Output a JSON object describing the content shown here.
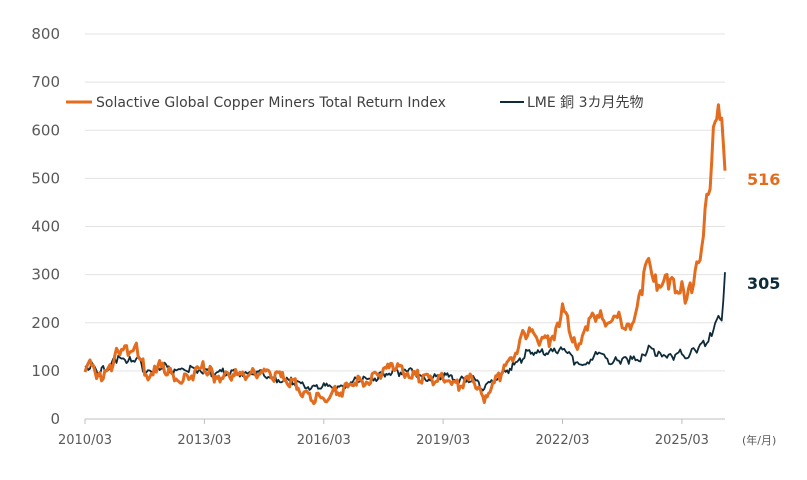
{
  "chart_data": {
    "type": "line",
    "x_unit_label": "(年/月)",
    "x_ticks": [
      "2010/03",
      "2013/03",
      "2016/03",
      "2019/03",
      "2022/03",
      "2025/03"
    ],
    "y_ticks": [
      "0",
      "100",
      "200",
      "300",
      "400",
      "500",
      "600",
      "700",
      "800"
    ],
    "ylim": [
      0,
      800
    ],
    "xlim": [
      "2010/03",
      "2026/04"
    ],
    "grid": "horizontal",
    "legend_position": "top-left",
    "series": [
      {
        "name": "Solactive Global Copper Miners Total Return Index",
        "color": "#E36C1E",
        "end_label": "516",
        "points": [
          [
            "2010/03",
            100
          ],
          [
            "2010/05",
            120
          ],
          [
            "2010/07",
            88
          ],
          [
            "2010/09",
            95
          ],
          [
            "2010/11",
            110
          ],
          [
            "2011/01",
            145
          ],
          [
            "2011/03",
            150
          ],
          [
            "2011/05",
            140
          ],
          [
            "2011/07",
            145
          ],
          [
            "2011/09",
            100
          ],
          [
            "2011/11",
            85
          ],
          [
            "2012/01",
            110
          ],
          [
            "2012/03",
            105
          ],
          [
            "2012/06",
            88
          ],
          [
            "2012/09",
            85
          ],
          [
            "2012/12",
            95
          ],
          [
            "2013/03",
            110
          ],
          [
            "2013/06",
            88
          ],
          [
            "2013/09",
            92
          ],
          [
            "2013/12",
            92
          ],
          [
            "2014/03",
            90
          ],
          [
            "2014/06",
            95
          ],
          [
            "2014/09",
            100
          ],
          [
            "2014/12",
            90
          ],
          [
            "2015/03",
            85
          ],
          [
            "2015/06",
            75
          ],
          [
            "2015/09",
            55
          ],
          [
            "2015/12",
            40
          ],
          [
            "2016/03",
            45
          ],
          [
            "2016/06",
            55
          ],
          [
            "2016/09",
            60
          ],
          [
            "2016/12",
            75
          ],
          [
            "2017/03",
            80
          ],
          [
            "2017/06",
            85
          ],
          [
            "2017/09",
            100
          ],
          [
            "2017/12",
            110
          ],
          [
            "2018/03",
            100
          ],
          [
            "2018/06",
            95
          ],
          [
            "2018/09",
            80
          ],
          [
            "2018/12",
            80
          ],
          [
            "2019/03",
            90
          ],
          [
            "2019/06",
            75
          ],
          [
            "2019/09",
            70
          ],
          [
            "2019/12",
            85
          ],
          [
            "2020/03",
            40
          ],
          [
            "2020/06",
            70
          ],
          [
            "2020/09",
            100
          ],
          [
            "2020/12",
            130
          ],
          [
            "2021/03",
            170
          ],
          [
            "2021/05",
            185
          ],
          [
            "2021/08",
            165
          ],
          [
            "2021/11",
            165
          ],
          [
            "2022/01",
            185
          ],
          [
            "2022/03",
            230
          ],
          [
            "2022/05",
            195
          ],
          [
            "2022/07",
            155
          ],
          [
            "2022/09",
            165
          ],
          [
            "2022/11",
            195
          ],
          [
            "2023/01",
            220
          ],
          [
            "2023/03",
            215
          ],
          [
            "2023/05",
            195
          ],
          [
            "2023/07",
            210
          ],
          [
            "2023/09",
            205
          ],
          [
            "2023/11",
            200
          ],
          [
            "2024/01",
            205
          ],
          [
            "2024/03",
            270
          ],
          [
            "2024/05",
            340
          ],
          [
            "2024/07",
            290
          ],
          [
            "2024/09",
            275
          ],
          [
            "2024/11",
            285
          ],
          [
            "2025/01",
            270
          ],
          [
            "2025/03",
            275
          ],
          [
            "2025/04",
            240
          ],
          [
            "2025/06",
            280
          ],
          [
            "2025/08",
            330
          ],
          [
            "2025/10",
            420
          ],
          [
            "2025/12",
            520
          ],
          [
            "2026/01",
            640
          ],
          [
            "2026/02",
            670
          ],
          [
            "2026/03",
            600
          ],
          [
            "2026/04",
            516
          ]
        ]
      },
      {
        "name": "LME 銅 3カ月先物",
        "color": "#0E2B3A",
        "end_label": "305",
        "points": [
          [
            "2010/03",
            100
          ],
          [
            "2010/05",
            110
          ],
          [
            "2010/07",
            95
          ],
          [
            "2010/09",
            105
          ],
          [
            "2010/11",
            115
          ],
          [
            "2011/01",
            125
          ],
          [
            "2011/03",
            125
          ],
          [
            "2011/05",
            120
          ],
          [
            "2011/07",
            128
          ],
          [
            "2011/09",
            95
          ],
          [
            "2011/11",
            100
          ],
          [
            "2012/01",
            110
          ],
          [
            "2012/03",
            110
          ],
          [
            "2012/06",
            98
          ],
          [
            "2012/09",
            105
          ],
          [
            "2012/12",
            105
          ],
          [
            "2013/03",
            100
          ],
          [
            "2013/06",
            92
          ],
          [
            "2013/09",
            98
          ],
          [
            "2013/12",
            100
          ],
          [
            "2014/03",
            92
          ],
          [
            "2014/06",
            95
          ],
          [
            "2014/09",
            95
          ],
          [
            "2014/12",
            85
          ],
          [
            "2015/03",
            80
          ],
          [
            "2015/06",
            78
          ],
          [
            "2015/09",
            70
          ],
          [
            "2015/12",
            63
          ],
          [
            "2016/03",
            68
          ],
          [
            "2016/06",
            65
          ],
          [
            "2016/09",
            68
          ],
          [
            "2016/12",
            80
          ],
          [
            "2017/03",
            82
          ],
          [
            "2017/06",
            83
          ],
          [
            "2017/09",
            95
          ],
          [
            "2017/12",
            100
          ],
          [
            "2018/03",
            95
          ],
          [
            "2018/06",
            100
          ],
          [
            "2018/09",
            85
          ],
          [
            "2018/12",
            85
          ],
          [
            "2019/03",
            90
          ],
          [
            "2019/06",
            85
          ],
          [
            "2019/09",
            80
          ],
          [
            "2019/12",
            85
          ],
          [
            "2020/03",
            65
          ],
          [
            "2020/06",
            80
          ],
          [
            "2020/09",
            95
          ],
          [
            "2020/12",
            110
          ],
          [
            "2021/03",
            125
          ],
          [
            "2021/05",
            145
          ],
          [
            "2021/08",
            135
          ],
          [
            "2021/11",
            140
          ],
          [
            "2022/01",
            140
          ],
          [
            "2022/03",
            150
          ],
          [
            "2022/05",
            135
          ],
          [
            "2022/07",
            110
          ],
          [
            "2022/09",
            112
          ],
          [
            "2022/11",
            120
          ],
          [
            "2023/01",
            135
          ],
          [
            "2023/03",
            130
          ],
          [
            "2023/05",
            120
          ],
          [
            "2023/07",
            125
          ],
          [
            "2023/09",
            122
          ],
          [
            "2023/11",
            122
          ],
          [
            "2024/01",
            122
          ],
          [
            "2024/03",
            130
          ],
          [
            "2024/05",
            150
          ],
          [
            "2024/07",
            135
          ],
          [
            "2024/09",
            135
          ],
          [
            "2024/11",
            132
          ],
          [
            "2025/01",
            130
          ],
          [
            "2025/03",
            140
          ],
          [
            "2025/04",
            128
          ],
          [
            "2025/06",
            140
          ],
          [
            "2025/08",
            145
          ],
          [
            "2025/10",
            160
          ],
          [
            "2025/12",
            175
          ],
          [
            "2026/01",
            195
          ],
          [
            "2026/02",
            210
          ],
          [
            "2026/03",
            205
          ],
          [
            "2026/04",
            305
          ]
        ]
      }
    ]
  }
}
